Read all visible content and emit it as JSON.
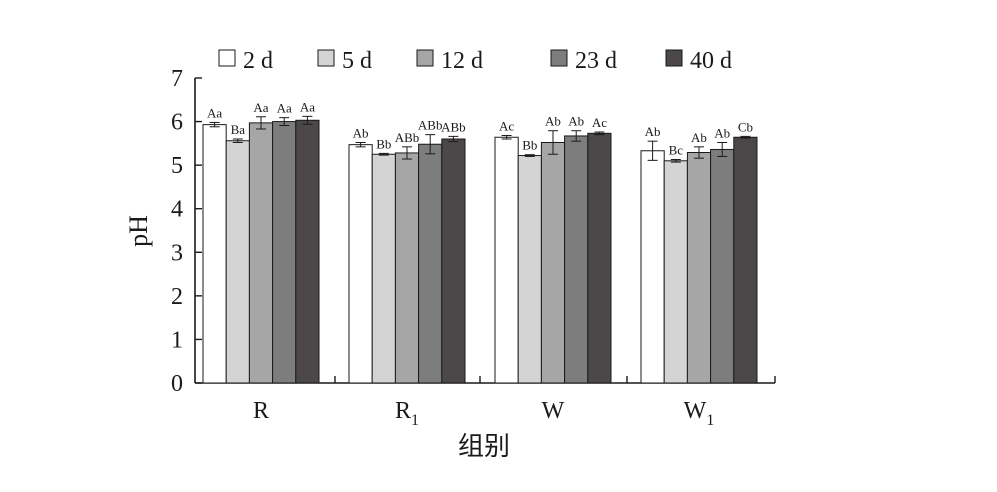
{
  "chart_data": {
    "type": "bar",
    "xlabel": "组别",
    "ylabel": "pH",
    "ylim": [
      0,
      7
    ],
    "yticks": [
      0,
      1,
      2,
      3,
      4,
      5,
      6,
      7
    ],
    "grid": false,
    "legend_position": "top",
    "categories": [
      {
        "main": "R",
        "sub": ""
      },
      {
        "main": "R",
        "sub": "1"
      },
      {
        "main": "W",
        "sub": ""
      },
      {
        "main": "W",
        "sub": "1"
      }
    ],
    "series": [
      {
        "name": "2 d",
        "color": "#ffffff",
        "values": [
          5.93,
          5.47,
          5.64,
          5.33
        ],
        "errors": [
          0.05,
          0.05,
          0.04,
          0.22
        ],
        "labels": [
          "Aa",
          "Ab",
          "Ac",
          "Ab"
        ]
      },
      {
        "name": "5 d",
        "color": "#d4d4d4",
        "values": [
          5.56,
          5.25,
          5.22,
          5.1
        ],
        "errors": [
          0.04,
          0.02,
          0.02,
          0.03
        ],
        "labels": [
          "Ba",
          "Bb",
          "Bb",
          "Bc"
        ]
      },
      {
        "name": "12 d",
        "color": "#a6a6a6",
        "values": [
          5.97,
          5.28,
          5.52,
          5.29
        ],
        "errors": [
          0.14,
          0.14,
          0.27,
          0.13
        ],
        "labels": [
          "Aa",
          "ABb",
          "Ab",
          "Ab"
        ]
      },
      {
        "name": "23 d",
        "color": "#7d7d7d",
        "values": [
          6.0,
          5.48,
          5.67,
          5.36
        ],
        "errors": [
          0.09,
          0.22,
          0.12,
          0.16
        ],
        "labels": [
          "Aa",
          "ABb",
          "Ab",
          "Ab"
        ]
      },
      {
        "name": "40 d",
        "color": "#4c4849",
        "values": [
          6.03,
          5.6,
          5.73,
          5.64
        ],
        "errors": [
          0.09,
          0.06,
          0.03,
          0.02
        ],
        "labels": [
          "Aa",
          "ABb",
          "Ac",
          "Cb"
        ]
      }
    ]
  }
}
